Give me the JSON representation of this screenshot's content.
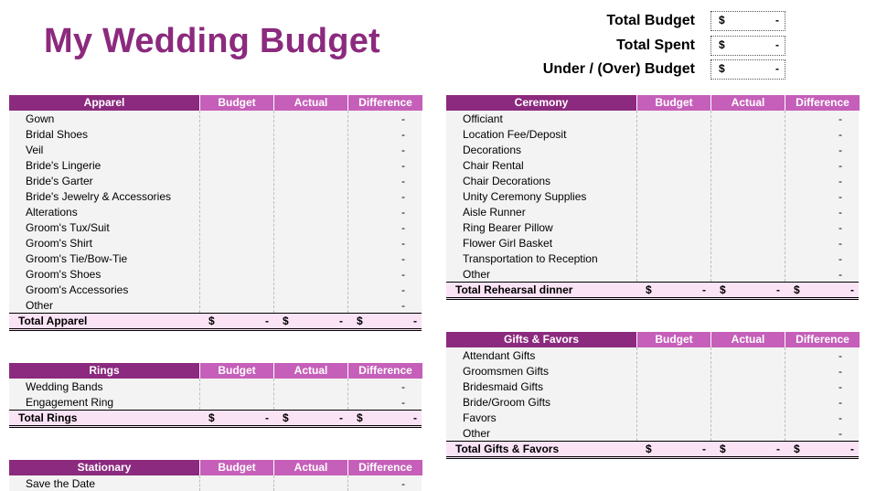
{
  "title": "My Wedding Budget",
  "summary": [
    {
      "label": "Total Budget",
      "currency": "$",
      "value": "-"
    },
    {
      "label": "Total Spent",
      "currency": "$",
      "value": "-"
    },
    {
      "label": "Under / (Over) Budget",
      "currency": "$",
      "value": "-"
    }
  ],
  "columns": {
    "budget": "Budget",
    "actual": "Actual",
    "difference": "Difference"
  },
  "currency": "$",
  "dash": "-",
  "tables": [
    {
      "id": "apparel",
      "header": "Apparel",
      "items": [
        "Gown",
        "Bridal Shoes",
        "Veil",
        "Bride's Lingerie",
        "Bride's Garter",
        "Bride's Jewelry & Accessories",
        "Alterations",
        "Groom's Tux/Suit",
        "Groom's Shirt",
        "Groom's Tie/Bow-Tie",
        "Groom's Shoes",
        "Groom's Accessories",
        "Other"
      ],
      "total": "Total Apparel"
    },
    {
      "id": "rings",
      "header": "Rings",
      "items": [
        "Wedding Bands",
        "Engagement Ring"
      ],
      "total": "Total Rings"
    },
    {
      "id": "stationary",
      "header": "Stationary",
      "items": [
        "Save the Date"
      ],
      "total": ""
    },
    {
      "id": "ceremony",
      "header": "Ceremony",
      "items": [
        "Officiant",
        "Location Fee/Deposit",
        "Decorations",
        "Chair Rental",
        "Chair Decorations",
        "Unity Ceremony Supplies",
        "Aisle Runner",
        "Ring Bearer Pillow",
        "Flower Girl Basket",
        "Transportation to Reception",
        "Other"
      ],
      "total": "Total Rehearsal dinner"
    },
    {
      "id": "gifts",
      "header": "Gifts & Favors",
      "items": [
        "Attendant Gifts",
        "Groomsmen Gifts",
        "Bridesmaid Gifts",
        "Bride/Groom Gifts",
        "Favors",
        "Other"
      ],
      "total": "Total Gifts & Favors"
    }
  ]
}
